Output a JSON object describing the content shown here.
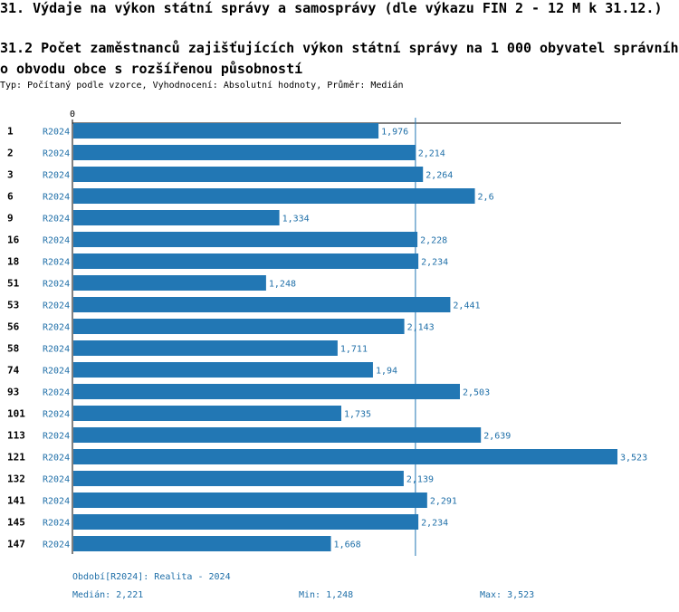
{
  "header": {
    "title": "31. Výdaje na výkon státní správy a samosprávy (dle výkazu FIN 2 - 12 M k 31.12.)",
    "subtitle": "31.2 Počet zaměstnanců zajišťujících výkon státní správy na 1 000 obyvatel správního obvodu obce s rozšířenou působností",
    "meta": "Typ: Počítaný podle vzorce, Vyhodnocení: Absolutní hodnoty, Průměr: Medián"
  },
  "chart_data": {
    "type": "bar",
    "orientation": "horizontal",
    "axis_zero_label": "0",
    "xlim": [
      0,
      3.523
    ],
    "median_value": 2.221,
    "categories": [
      "1",
      "2",
      "3",
      "6",
      "9",
      "16",
      "18",
      "51",
      "53",
      "56",
      "58",
      "74",
      "93",
      "101",
      "113",
      "121",
      "132",
      "141",
      "145",
      "147"
    ],
    "series": [
      {
        "name": "R2024",
        "period_labels": [
          "R2024",
          "R2024",
          "R2024",
          "R2024",
          "R2024",
          "R2024",
          "R2024",
          "R2024",
          "R2024",
          "R2024",
          "R2024",
          "R2024",
          "R2024",
          "R2024",
          "R2024",
          "R2024",
          "R2024",
          "R2024",
          "R2024",
          "R2024"
        ],
        "values": [
          1.976,
          2.214,
          2.264,
          2.6,
          1.334,
          2.228,
          2.234,
          1.248,
          2.441,
          2.143,
          1.711,
          1.94,
          2.503,
          1.735,
          2.639,
          3.523,
          2.139,
          2.291,
          2.234,
          1.668
        ],
        "value_labels": [
          "1,976",
          "2,214",
          "2,264",
          "2,6",
          "1,334",
          "2,228",
          "2,234",
          "1,248",
          "2,441",
          "2,143",
          "1,711",
          "1,94",
          "2,503",
          "1,735",
          "2,639",
          "3,523",
          "2,139",
          "2,291",
          "2,234",
          "1,668"
        ]
      }
    ]
  },
  "footer": {
    "period": "Období[R2024]: Realita - 2024",
    "median": "Medián: 2,221",
    "min": "Min: 1,248",
    "max": "Max: 3,523"
  },
  "colors": {
    "bar": "#2277b4",
    "label": "#1f6fa8",
    "axis": "#000000"
  }
}
